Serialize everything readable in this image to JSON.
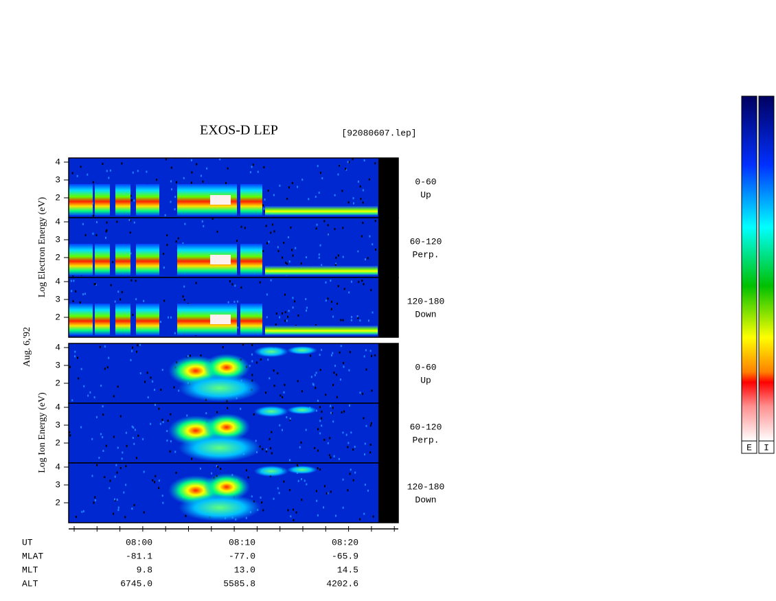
{
  "header": {
    "title": "EXOS-D LEP",
    "file": "[92080607.lep]",
    "date": "Aug. 6,'92"
  },
  "electron": {
    "y_label": "Log Electron Energy (eV)",
    "panels": [
      {
        "range": "0-60",
        "direction": "Up",
        "ticks": [
          4,
          3,
          2
        ]
      },
      {
        "range": "60-120",
        "direction": "Perp.",
        "ticks": [
          4,
          3,
          2
        ]
      },
      {
        "range": "120-180",
        "direction": "Down",
        "ticks": [
          4,
          3,
          2
        ]
      }
    ]
  },
  "ion": {
    "y_label": "Log Ion Energy (eV)",
    "panels": [
      {
        "range": "0-60",
        "direction": "Up",
        "ticks": [
          4,
          3,
          2
        ]
      },
      {
        "range": "60-120",
        "direction": "Perp.",
        "ticks": [
          4,
          3,
          2
        ]
      },
      {
        "range": "120-180",
        "direction": "Down",
        "ticks": [
          4,
          3,
          2
        ]
      }
    ]
  },
  "orbit_table": {
    "rows": [
      {
        "label": "UT",
        "values": [
          "08:00",
          "08:10",
          "08:20"
        ]
      },
      {
        "label": "MLAT",
        "values": [
          "-81.1",
          "-77.0",
          "-65.9"
        ]
      },
      {
        "label": "MLT",
        "values": [
          "9.8",
          "13.0",
          "14.5"
        ]
      },
      {
        "label": "ALT",
        "values": [
          "6745.0",
          "5585.8",
          "4202.6"
        ]
      }
    ]
  },
  "colorbars": [
    "E",
    "I"
  ]
}
